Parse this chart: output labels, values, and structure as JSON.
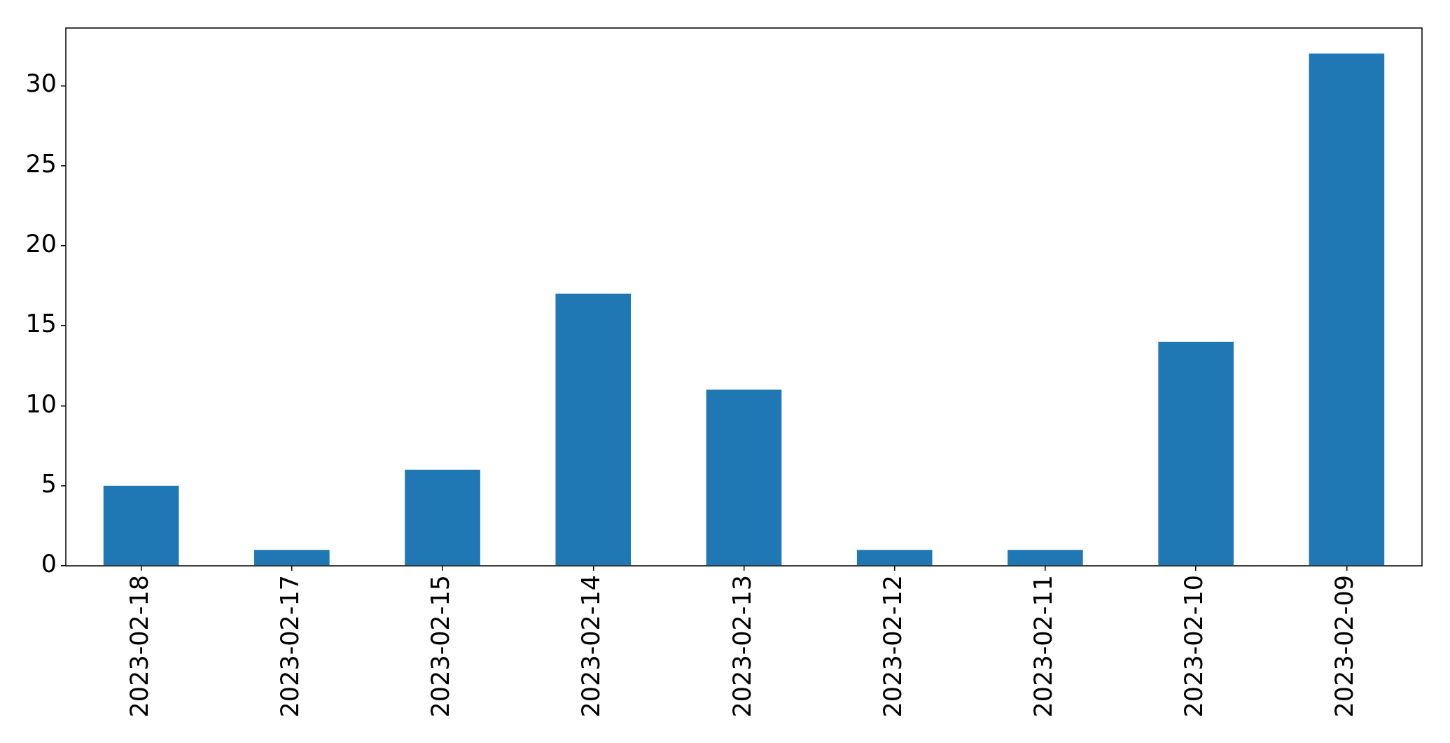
{
  "chart_data": {
    "type": "bar",
    "categories": [
      "2023-02-18",
      "2023-02-17",
      "2023-02-15",
      "2023-02-14",
      "2023-02-13",
      "2023-02-12",
      "2023-02-11",
      "2023-02-10",
      "2023-02-09"
    ],
    "values": [
      5,
      1,
      6,
      17,
      11,
      1,
      1,
      14,
      32
    ],
    "color": "#1f77b4",
    "ylim": [
      0,
      33.6
    ],
    "yticks": [
      0,
      5,
      10,
      15,
      20,
      25,
      30
    ]
  }
}
